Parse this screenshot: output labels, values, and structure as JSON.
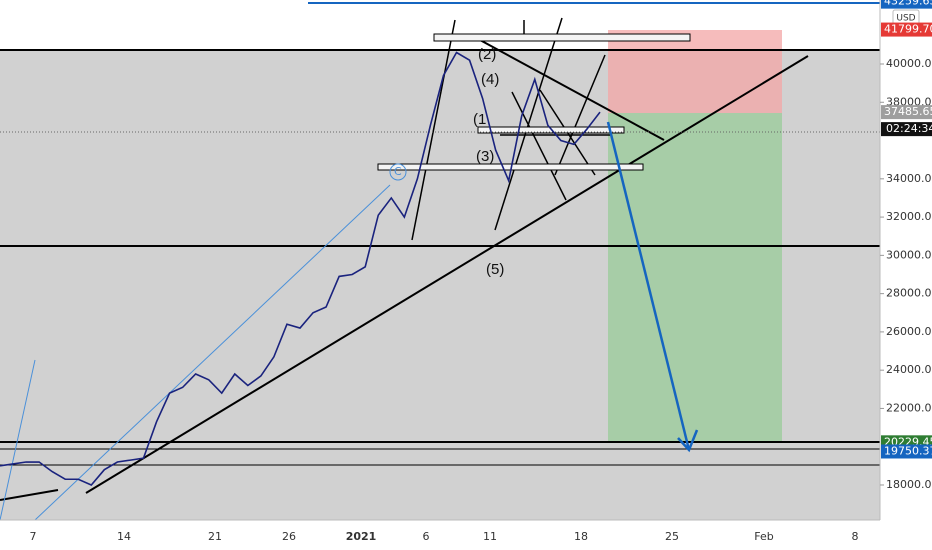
{
  "chart_data": {
    "type": "line",
    "series": [
      {
        "name": "BTCUSD",
        "color": "#1a237e",
        "values": [
          19000,
          19100,
          19200,
          19200,
          18700,
          18300,
          18300,
          18000,
          18800,
          19200,
          19300,
          19400,
          21300,
          22800,
          23100,
          23800,
          23500,
          22800,
          23800,
          23200,
          23700,
          24700,
          26400,
          26200,
          27000,
          27300,
          28900,
          29000,
          29400,
          32100,
          33000,
          32000,
          34000,
          36800,
          39400,
          40600,
          40200,
          38200,
          35500,
          33900,
          37300,
          39200,
          36800,
          36000,
          35800,
          36600,
          37485.65
        ]
      }
    ],
    "ylim": [
      16170,
      43345
    ],
    "yticks": [
      {
        "value": 40000,
        "label": "40000.00"
      },
      {
        "value": 38000,
        "label": "38000.00"
      },
      {
        "value": 34000,
        "label": "34000.00"
      },
      {
        "value": 32000,
        "label": "32000.00"
      },
      {
        "value": 30000,
        "label": "30000.00"
      },
      {
        "value": 28000,
        "label": "28000.00"
      },
      {
        "value": 26000,
        "label": "26000.00"
      },
      {
        "value": 24000,
        "label": "24000.00"
      },
      {
        "value": 22000,
        "label": "22000.00"
      },
      {
        "value": 18000,
        "label": "18000.00"
      }
    ],
    "x_labels": [
      "7",
      "14",
      "21",
      "26",
      "2021",
      "6",
      "11",
      "18",
      "25",
      "Feb",
      "8"
    ],
    "price_labels": [
      {
        "value": 43259.65,
        "label": "43259.65",
        "color": "#1565c0"
      },
      {
        "value": 41799.7,
        "label": "41799.70",
        "color": "#e53935"
      },
      {
        "value": 37485.65,
        "label": "37485.65",
        "color": "#9e9e9e"
      },
      {
        "value": 20229.45,
        "label": "20229.45",
        "color": "#2e7d32"
      },
      {
        "value": 19750.37,
        "label": "19750.37",
        "color": "#1565c0"
      }
    ],
    "currency": "USD",
    "countdown": "02:24:34",
    "annotations": [
      "(2)",
      "(4)",
      "(1",
      "(3)",
      "(5)",
      "C"
    ]
  }
}
